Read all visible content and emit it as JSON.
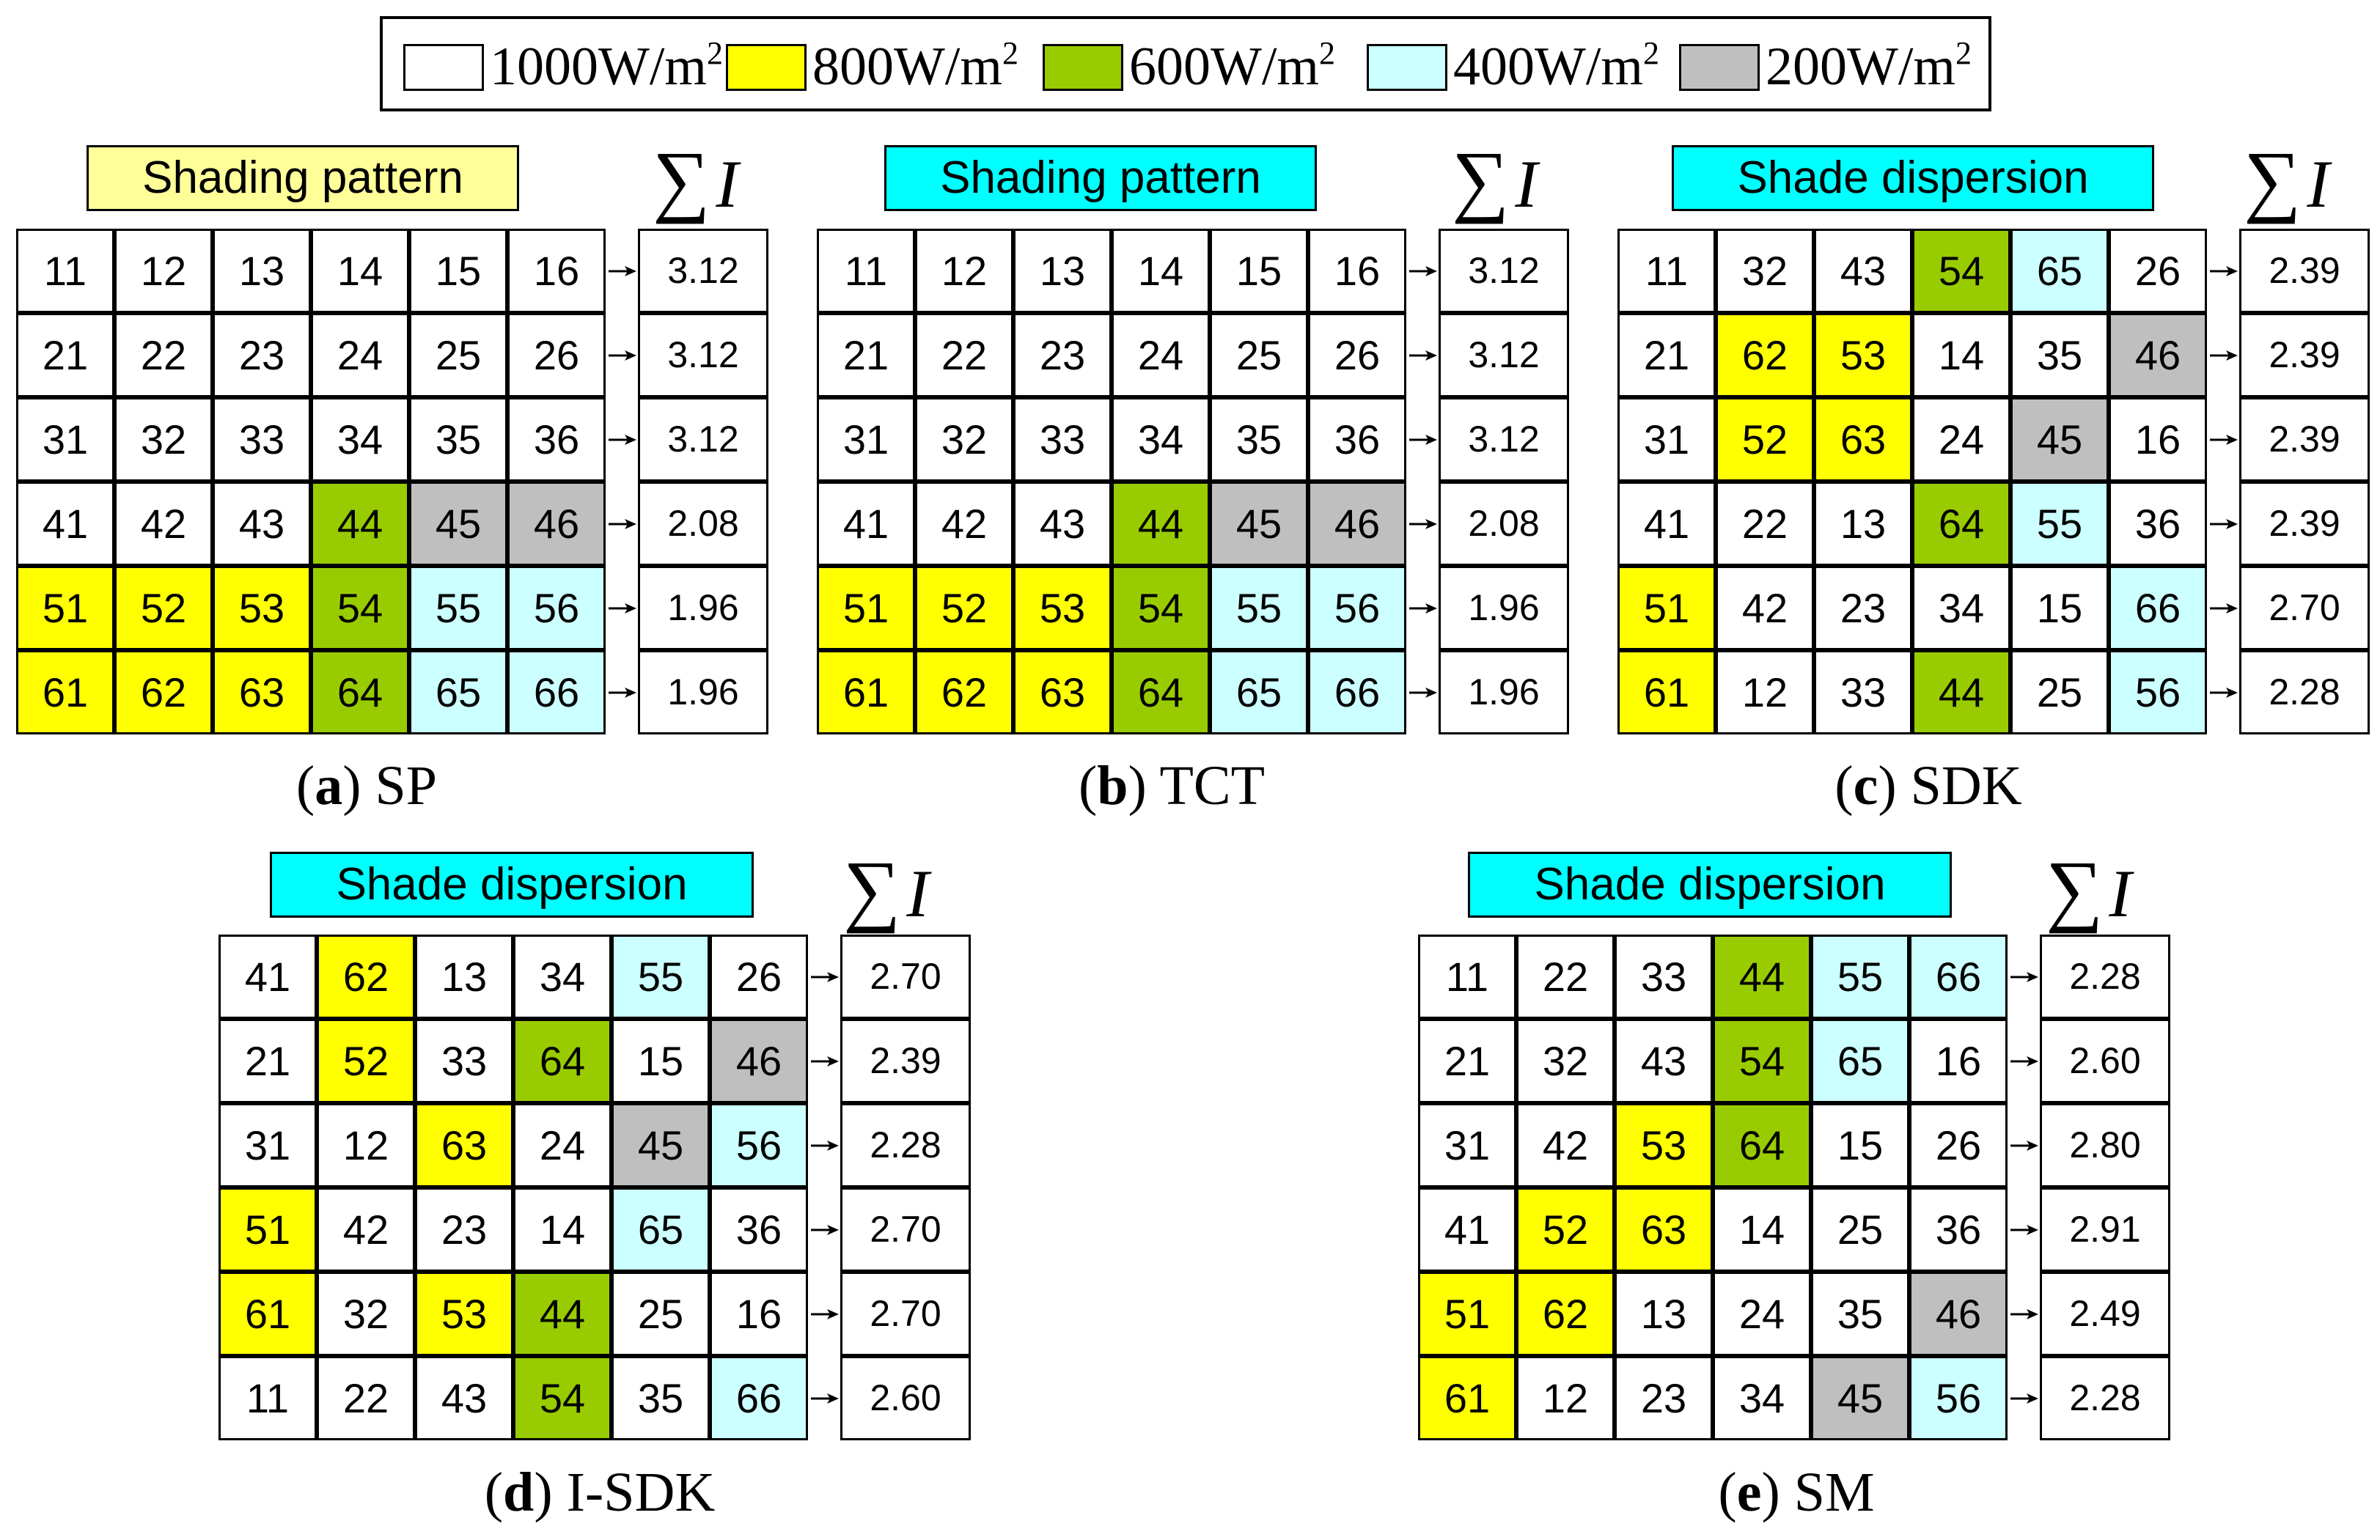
{
  "colors": {
    "1000": "#ffffff",
    "800": "#ffff00",
    "600": "#99cc00",
    "400": "#ccffff",
    "200": "#bfbfbf",
    "header_yellow": "#ffff99",
    "header_cyan": "#00ffff"
  },
  "legend": [
    {
      "level": "1000",
      "value": "1000W/m",
      "exp": "2"
    },
    {
      "level": "800",
      "value": "800W/m",
      "exp": "2"
    },
    {
      "level": "600",
      "value": "600W/m",
      "exp": "2"
    },
    {
      "level": "400",
      "value": "400W/m",
      "exp": "2"
    },
    {
      "level": "200",
      "value": "200W/m",
      "exp": "2"
    }
  ],
  "sum_label": "∑",
  "sum_var": "I",
  "panels": [
    {
      "id": "a",
      "header": "Shading pattern",
      "header_color": "header_yellow",
      "caption_letter": "a",
      "caption_text": "SP",
      "cells": [
        [
          "11",
          "12",
          "13",
          "14",
          "15",
          "16"
        ],
        [
          "21",
          "22",
          "23",
          "24",
          "25",
          "26"
        ],
        [
          "31",
          "32",
          "33",
          "34",
          "35",
          "36"
        ],
        [
          "41",
          "42",
          "43",
          "44",
          "45",
          "46"
        ],
        [
          "51",
          "52",
          "53",
          "54",
          "55",
          "56"
        ],
        [
          "61",
          "62",
          "63",
          "64",
          "65",
          "66"
        ]
      ],
      "sums": [
        "3.12",
        "3.12",
        "3.12",
        "2.08",
        "1.96",
        "1.96"
      ]
    },
    {
      "id": "b",
      "header": "Shading pattern",
      "header_color": "header_cyan",
      "caption_letter": "b",
      "caption_text": "TCT",
      "cells": [
        [
          "11",
          "12",
          "13",
          "14",
          "15",
          "16"
        ],
        [
          "21",
          "22",
          "23",
          "24",
          "25",
          "26"
        ],
        [
          "31",
          "32",
          "33",
          "34",
          "35",
          "36"
        ],
        [
          "41",
          "42",
          "43",
          "44",
          "45",
          "46"
        ],
        [
          "51",
          "52",
          "53",
          "54",
          "55",
          "56"
        ],
        [
          "61",
          "62",
          "63",
          "64",
          "65",
          "66"
        ]
      ],
      "sums": [
        "3.12",
        "3.12",
        "3.12",
        "2.08",
        "1.96",
        "1.96"
      ]
    },
    {
      "id": "c",
      "header": "Shade dispersion",
      "header_color": "header_cyan",
      "caption_letter": "c",
      "caption_text": "SDK",
      "cells": [
        [
          "11",
          "32",
          "43",
          "54",
          "65",
          "26"
        ],
        [
          "21",
          "62",
          "53",
          "14",
          "35",
          "46"
        ],
        [
          "31",
          "52",
          "63",
          "24",
          "45",
          "16"
        ],
        [
          "41",
          "22",
          "13",
          "64",
          "55",
          "36"
        ],
        [
          "51",
          "42",
          "23",
          "34",
          "15",
          "66"
        ],
        [
          "61",
          "12",
          "33",
          "44",
          "25",
          "56"
        ]
      ],
      "sums": [
        "2.39",
        "2.39",
        "2.39",
        "2.39",
        "2.70",
        "2.28"
      ]
    },
    {
      "id": "d",
      "header": "Shade dispersion",
      "header_color": "header_cyan",
      "caption_letter": "d",
      "caption_text": "I-SDK",
      "cells": [
        [
          "41",
          "62",
          "13",
          "34",
          "55",
          "26"
        ],
        [
          "21",
          "52",
          "33",
          "64",
          "15",
          "46"
        ],
        [
          "31",
          "12",
          "63",
          "24",
          "45",
          "56"
        ],
        [
          "51",
          "42",
          "23",
          "14",
          "65",
          "36"
        ],
        [
          "61",
          "32",
          "53",
          "44",
          "25",
          "16"
        ],
        [
          "11",
          "22",
          "43",
          "54",
          "35",
          "66"
        ]
      ],
      "sums": [
        "2.70",
        "2.39",
        "2.28",
        "2.70",
        "2.70",
        "2.60"
      ]
    },
    {
      "id": "e",
      "header": "Shade dispersion",
      "header_color": "header_cyan",
      "caption_letter": "e",
      "caption_text": "SM",
      "cells": [
        [
          "11",
          "22",
          "33",
          "44",
          "55",
          "66"
        ],
        [
          "21",
          "32",
          "43",
          "54",
          "65",
          "16"
        ],
        [
          "31",
          "42",
          "53",
          "64",
          "15",
          "26"
        ],
        [
          "41",
          "52",
          "63",
          "14",
          "25",
          "36"
        ],
        [
          "51",
          "62",
          "13",
          "24",
          "35",
          "46"
        ],
        [
          "61",
          "12",
          "23",
          "34",
          "45",
          "56"
        ]
      ],
      "sums": [
        "2.28",
        "2.60",
        "2.80",
        "2.91",
        "2.49",
        "2.28"
      ]
    }
  ]
}
